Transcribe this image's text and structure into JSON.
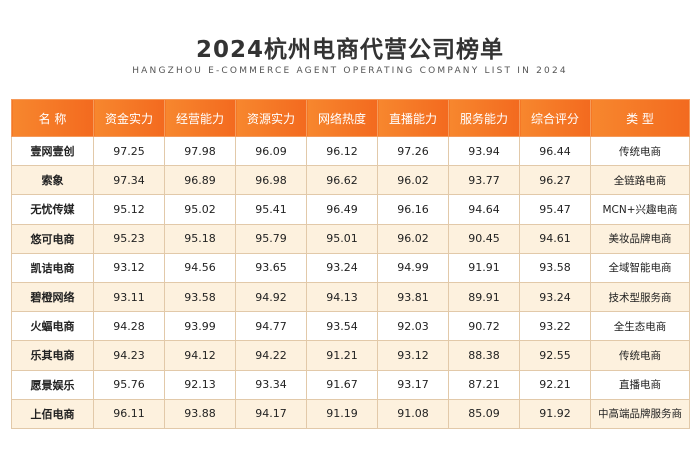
{
  "title": "2024杭州电商代营公司榜单",
  "subtitle": "HANGZHOU E-COMMERCE AGENT OPERATING COMPANY LIST IN 2024",
  "headers": [
    "名 称",
    "资金实力",
    "经营能力",
    "资源实力",
    "网络热度",
    "直播能力",
    "服务能力",
    "综合评分",
    "类 型"
  ],
  "rows": [
    [
      "壹网壹创",
      "97.25",
      "97.98",
      "96.09",
      "96.12",
      "97.26",
      "93.94",
      "96.44",
      "传统电商"
    ],
    [
      "索象",
      "97.34",
      "96.89",
      "96.98",
      "96.62",
      "96.02",
      "93.77",
      "96.27",
      "全链路电商"
    ],
    [
      "无忧传媒",
      "95.12",
      "95.02",
      "95.41",
      "96.49",
      "96.16",
      "94.64",
      "95.47",
      "MCN+兴趣电商"
    ],
    [
      "悠可电商",
      "95.23",
      "95.18",
      "95.79",
      "95.01",
      "96.02",
      "90.45",
      "94.61",
      "美妆品牌电商"
    ],
    [
      "凯诘电商",
      "93.12",
      "94.56",
      "93.65",
      "93.24",
      "94.99",
      "91.91",
      "93.58",
      "全域智能电商"
    ],
    [
      "碧橙网络",
      "93.11",
      "93.58",
      "94.92",
      "94.13",
      "93.81",
      "89.91",
      "93.24",
      "技术型服务商"
    ],
    [
      "火蝠电商",
      "94.28",
      "93.99",
      "94.77",
      "93.54",
      "92.03",
      "90.72",
      "93.22",
      "全生态电商"
    ],
    [
      "乐其电商",
      "94.23",
      "94.12",
      "94.22",
      "91.21",
      "93.12",
      "88.38",
      "92.55",
      "传统电商"
    ],
    [
      "愿景娱乐",
      "95.76",
      "92.13",
      "93.34",
      "91.67",
      "93.17",
      "87.21",
      "92.21",
      "直播电商"
    ],
    [
      "上佰电商",
      "96.11",
      "93.88",
      "94.17",
      "91.19",
      "91.08",
      "85.09",
      "91.92",
      "中高端品牌服务商"
    ]
  ],
  "colors": {
    "header_orange": "#f36a1f",
    "stripe": "#fdf1de",
    "border": "#e2c9a9"
  }
}
